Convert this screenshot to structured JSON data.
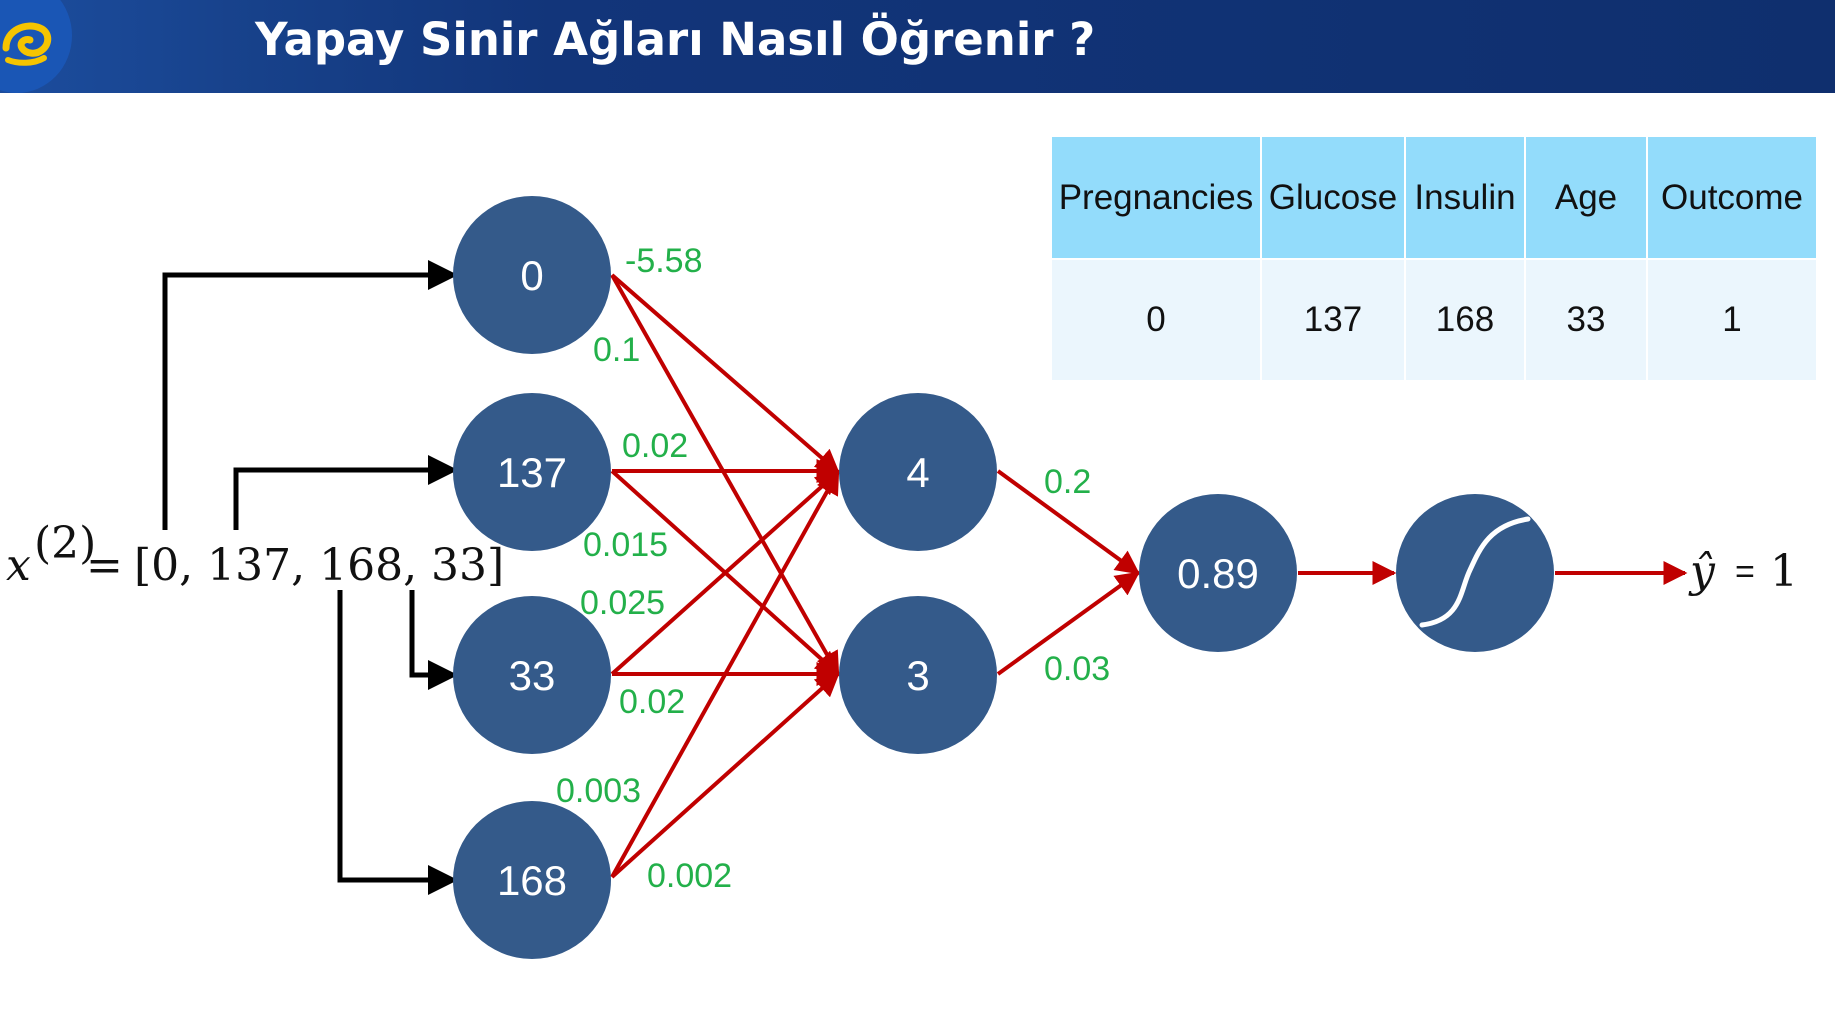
{
  "header": {
    "title": "Yapay Sinir Ağları Nasıl Öğrenir ?",
    "background_color": "#0f2f6e",
    "logo_icon": "turkcell-logo-icon",
    "logo_color": "#f5c400"
  },
  "table": {
    "headers": [
      "Pregnancies",
      "Glucose",
      "Insulin",
      "Age",
      "Outcome"
    ],
    "rows": [
      [
        "0",
        "137",
        "168",
        "33",
        "1"
      ]
    ],
    "header_color": "#93dcfb",
    "row_color": "#ebf6fd"
  },
  "input_vector": {
    "symbol": "x",
    "superscript": "(2)",
    "equals": "=",
    "values_text": "[0, 137, 168, 33]"
  },
  "diagram": {
    "node_color": "#345a8a",
    "edge_color": "#c00000",
    "input_arrow_color": "#000000",
    "weight_color": "#23b04a",
    "input_nodes": [
      "0",
      "137",
      "33",
      "168"
    ],
    "hidden_nodes": [
      "4",
      "3"
    ],
    "output_node": "0.89",
    "activation_icon": "sigmoid-icon",
    "input_to_hidden_weights": [
      {
        "from": "0",
        "label": "-5.58"
      },
      {
        "from": "0",
        "label": "0.1"
      },
      {
        "from": "137",
        "label": "0.02"
      },
      {
        "from": "137",
        "label": "0.015"
      },
      {
        "from": "33",
        "label": "0.025"
      },
      {
        "from": "33",
        "label": "0.02"
      },
      {
        "from": "168",
        "label": "0.003"
      },
      {
        "from": "168",
        "label": "0.002"
      }
    ],
    "hidden_to_output_weights": [
      {
        "from": "4",
        "label": "0.2"
      },
      {
        "from": "3",
        "label": "0.03"
      }
    ],
    "prediction": {
      "symbol": "ŷ",
      "equals": "=",
      "value": "1"
    }
  }
}
